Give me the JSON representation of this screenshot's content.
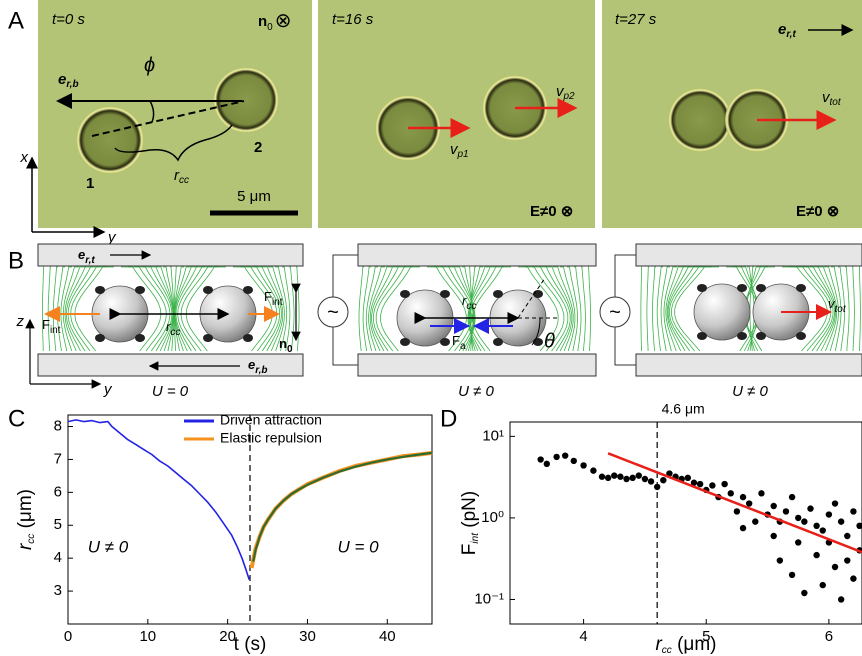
{
  "panel_labels": [
    "A",
    "B",
    "C",
    "D"
  ],
  "panel_a": {
    "times": [
      "t=0 s",
      "t=16 s",
      "t=27 s"
    ],
    "director": {
      "main": "n",
      "sub": "0",
      "tail": "⊗"
    },
    "e_rb": {
      "main": "e",
      "sub": "r,b"
    },
    "e_rt": {
      "main": "e",
      "sub": "r,t"
    },
    "phi": "ϕ",
    "particles": [
      "1",
      "2"
    ],
    "r_cc": {
      "main": "r",
      "sub": "cc"
    },
    "scale_bar": "5 μm",
    "axes": [
      "x",
      "y"
    ],
    "v_p1": {
      "main": "v",
      "sub": "p1"
    },
    "v_p2": {
      "main": "v",
      "sub": "p2"
    },
    "v_tot": {
      "main": "v",
      "sub": "tot"
    },
    "field": [
      "E≠0 ⊗",
      "E≠0 ⊗"
    ]
  },
  "panel_b": {
    "e_rt": {
      "main": "e",
      "sub": "r,t"
    },
    "e_rb": {
      "main": "e",
      "sub": "r,b"
    },
    "f_int": {
      "main": "F",
      "sub": "int"
    },
    "r_cc": {
      "main": "r",
      "sub": "cc"
    },
    "n0": {
      "main": "n",
      "sub": "0"
    },
    "axes": [
      "z",
      "y"
    ],
    "f_a": {
      "main": "F",
      "sub": "a"
    },
    "theta": "θ",
    "v_tot": {
      "main": "v",
      "sub": "tot"
    },
    "voltages": [
      "U = 0",
      "U ≠ 0",
      "U ≠ 0"
    ],
    "source": "~"
  },
  "chart_data": [
    {
      "type": "line",
      "xlabel": "t (s)",
      "ylabel": {
        "main": "r",
        "sub": "cc",
        "tail": " (μm)"
      },
      "xlim": [
        0,
        45.6
      ],
      "ylim": [
        2.0,
        8.35
      ],
      "xticks": [
        0,
        10,
        20,
        30,
        40
      ],
      "yticks": [
        3,
        4,
        5,
        6,
        7,
        8
      ],
      "vline": 22.8,
      "annotations": [
        "U ≠ 0",
        "U = 0"
      ],
      "series": [
        {
          "name": "Driven attraction",
          "color": "#2323e6",
          "x": [
            0,
            1,
            2,
            3,
            4,
            5,
            5.5,
            6.5,
            7.5,
            8.5,
            9.5,
            10.5,
            11.5,
            12.5,
            13.5,
            14.5,
            15.5,
            16.5,
            17.5,
            18.5,
            19.5,
            20.5,
            21.2,
            21.8,
            22.3,
            22.7
          ],
          "values": [
            8.15,
            8.2,
            8.15,
            8.18,
            8.12,
            8.15,
            8.0,
            7.8,
            7.6,
            7.45,
            7.3,
            7.15,
            6.95,
            6.8,
            6.6,
            6.4,
            6.2,
            5.95,
            5.7,
            5.4,
            5.05,
            4.7,
            4.35,
            4.0,
            3.65,
            3.35
          ]
        },
        {
          "name": "Elastic repulsion",
          "color": "#f5921e",
          "x": [
            23.0,
            23.5,
            24,
            24.5,
            25,
            26,
            27,
            28,
            29,
            30,
            32,
            34,
            36,
            38,
            40,
            42,
            44,
            45.6
          ],
          "values": [
            3.7,
            4.3,
            4.65,
            4.95,
            5.15,
            5.5,
            5.75,
            5.95,
            6.1,
            6.25,
            6.45,
            6.65,
            6.8,
            6.9,
            7.0,
            7.1,
            7.15,
            7.2
          ]
        },
        {
          "color": "#2e6b2e",
          "x": [
            23.2,
            23.5,
            24,
            24.5,
            25,
            26,
            27,
            28,
            29,
            30,
            32,
            34,
            36,
            38,
            40,
            42,
            44,
            45.6
          ],
          "values": [
            3.9,
            4.25,
            4.65,
            4.95,
            5.15,
            5.5,
            5.75,
            5.95,
            6.1,
            6.23,
            6.45,
            6.63,
            6.78,
            6.9,
            7.0,
            7.08,
            7.15,
            7.2
          ]
        }
      ]
    },
    {
      "type": "scatter",
      "xlabel": {
        "main": "r",
        "sub": "cc",
        "tail": " (μm)"
      },
      "ylabel": {
        "main": "F",
        "sub": "int",
        "tail": " (pN)"
      },
      "xlim": [
        3.4,
        6.27
      ],
      "ylim": [
        0.05,
        15
      ],
      "log_y": true,
      "xticks": [
        4,
        5,
        6
      ],
      "yticks": [
        {
          "value": 0.1,
          "label": "10⁻¹"
        },
        {
          "value": 1,
          "label": "10⁰"
        },
        {
          "value": 10,
          "label": "10¹"
        }
      ],
      "vline": 4.6,
      "annotations": [
        "4.6 μm"
      ],
      "series": [
        {
          "color": "#000000",
          "style": "markers",
          "x": [
            3.65,
            3.7,
            3.78,
            3.85,
            3.92,
            4.0,
            4.08,
            4.15,
            4.2,
            4.25,
            4.3,
            4.35,
            4.4,
            4.45,
            4.5,
            4.55,
            4.6,
            4.65,
            4.7,
            4.75,
            4.8,
            4.85,
            4.9,
            4.95,
            5.0,
            5.05,
            5.1,
            5.15,
            5.2,
            5.25,
            5.3,
            5.3,
            5.35,
            5.4,
            5.45,
            5.5,
            5.55,
            5.55,
            5.6,
            5.65,
            5.7,
            5.7,
            5.75,
            5.8,
            5.8,
            5.85,
            5.9,
            5.9,
            5.95,
            6.0,
            6.0,
            6.05,
            6.1,
            6.1,
            6.15,
            6.2,
            6.2,
            6.25,
            6.25,
            5.6,
            5.75,
            5.95,
            6.05,
            6.15
          ],
          "values": [
            5.2,
            4.6,
            5.6,
            5.8,
            5.0,
            4.4,
            3.8,
            3.2,
            3.1,
            3.3,
            3.2,
            3.0,
            3.1,
            3.3,
            3.0,
            2.8,
            2.4,
            2.9,
            3.5,
            3.2,
            3.0,
            3.1,
            2.7,
            2.6,
            2.2,
            2.5,
            1.8,
            2.6,
            2.0,
            1.2,
            0.75,
            1.8,
            1.5,
            0.9,
            2.0,
            1.1,
            1.4,
            0.6,
            0.3,
            1.2,
            0.2,
            1.8,
            0.5,
            0.9,
            0.12,
            1.3,
            0.35,
            0.8,
            0.15,
            1.1,
            0.5,
            0.25,
            0.9,
            0.1,
            0.6,
            1.2,
            0.18,
            0.4,
            0.8,
            0.9,
            1.0,
            0.7,
            1.5,
            0.3
          ]
        },
        {
          "color": "#e8201a",
          "style": "line",
          "x": [
            4.2,
            6.27
          ],
          "values": [
            6.2,
            0.38
          ]
        }
      ]
    }
  ]
}
